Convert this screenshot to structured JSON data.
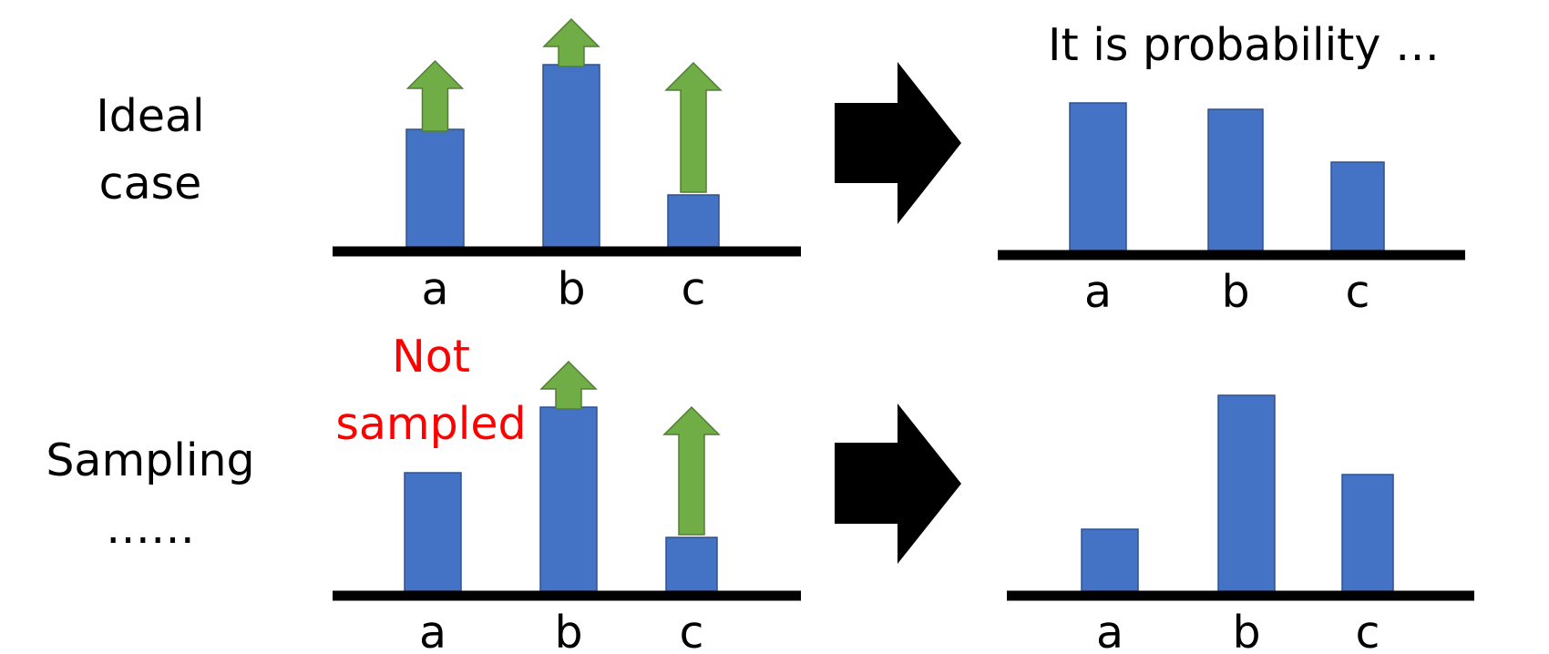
{
  "labels": {
    "ideal_line1": "Ideal",
    "ideal_line2": "case",
    "sampling_line1": "Sampling",
    "sampling_line2": "……",
    "not_sampled_line1": "Not",
    "not_sampled_line2": "sampled",
    "probability_title": "It is probability …"
  },
  "colors": {
    "bar_fill": "#4472c4",
    "bar_stroke": "#2f528f",
    "arrow_fill": "#70ad47",
    "arrow_stroke": "#507e32",
    "axis": "#000000",
    "not_sampled_text": "#ff0000"
  },
  "chart_data": [
    {
      "type": "bar",
      "categories": [
        "a",
        "b",
        "c"
      ],
      "values": [
        129,
        200,
        57
      ],
      "arrows": [
        true,
        true,
        true
      ]
    },
    {
      "type": "bar",
      "categories": [
        "a",
        "b",
        "c"
      ],
      "values": [
        162,
        155,
        97
      ]
    },
    {
      "type": "bar",
      "categories": [
        "a",
        "b",
        "c"
      ],
      "values": [
        130,
        202,
        59
      ],
      "arrows": [
        false,
        true,
        true
      ]
    },
    {
      "type": "bar",
      "categories": [
        "a",
        "b",
        "c"
      ],
      "values": [
        68,
        215,
        128
      ]
    }
  ]
}
